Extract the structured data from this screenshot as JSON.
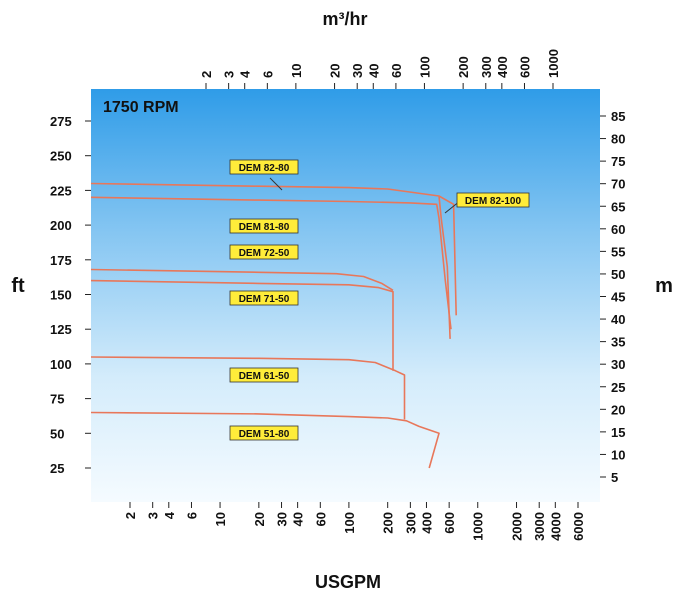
{
  "chart_data": {
    "type": "line",
    "title": "1750 RPM",
    "xlabel": "USGPM",
    "ylabel": "ft",
    "x2label": "m³/hr",
    "y2label": "m",
    "x_scale": "log",
    "x_ticks": [
      2,
      3,
      4,
      6,
      10,
      20,
      30,
      40,
      60,
      100,
      200,
      300,
      400,
      600,
      1000,
      2000,
      3000,
      4000,
      6000
    ],
    "x2_ticks": [
      2,
      3,
      4,
      6,
      10,
      20,
      30,
      40,
      60,
      100,
      200,
      300,
      400,
      600,
      1000
    ],
    "y_ticks": [
      25,
      50,
      75,
      100,
      125,
      150,
      175,
      200,
      225,
      250,
      275
    ],
    "y2_ticks": [
      5,
      10,
      15,
      20,
      25,
      30,
      35,
      40,
      45,
      50,
      55,
      60,
      65,
      70,
      75,
      80,
      85
    ],
    "grid": false,
    "series": [
      {
        "name": "DEM 82-80",
        "color": "#e8775a",
        "x": [
          1,
          20,
          100,
          200,
          500,
          520,
          580,
          610
        ],
        "y": [
          230,
          228,
          227,
          226,
          221,
          205,
          170,
          118
        ]
      },
      {
        "name": "DEM 82-100",
        "color": "#e8775a",
        "x": [
          500,
          650,
          680
        ],
        "y": [
          221,
          215,
          135
        ]
      },
      {
        "name": "DEM 81-80",
        "color": "#e8775a",
        "x": [
          1,
          20,
          100,
          300,
          480,
          500,
          560,
          620
        ],
        "y": [
          220,
          218,
          217,
          216,
          215,
          205,
          160,
          125
        ]
      },
      {
        "name": "DEM 72-50",
        "color": "#e8775a",
        "x": [
          1,
          20,
          80,
          130,
          180,
          220
        ],
        "y": [
          168,
          166,
          165,
          163,
          158,
          153
        ]
      },
      {
        "name": "DEM 71-50",
        "color": "#e8775a",
        "x": [
          1,
          20,
          100,
          170,
          220,
          220
        ],
        "y": [
          160,
          158,
          157,
          155,
          152,
          95
        ]
      },
      {
        "name": "DEM 61-50",
        "color": "#e8775a",
        "x": [
          1,
          20,
          100,
          160,
          230,
          270,
          270
        ],
        "y": [
          105,
          104,
          103,
          101,
          95,
          92,
          60
        ]
      },
      {
        "name": "DEM 51-80",
        "color": "#e8775a",
        "x": [
          1,
          20,
          100,
          200,
          280,
          350,
          500,
          420
        ],
        "y": [
          65,
          64,
          62,
          61,
          59,
          55,
          50,
          25
        ]
      }
    ]
  }
}
